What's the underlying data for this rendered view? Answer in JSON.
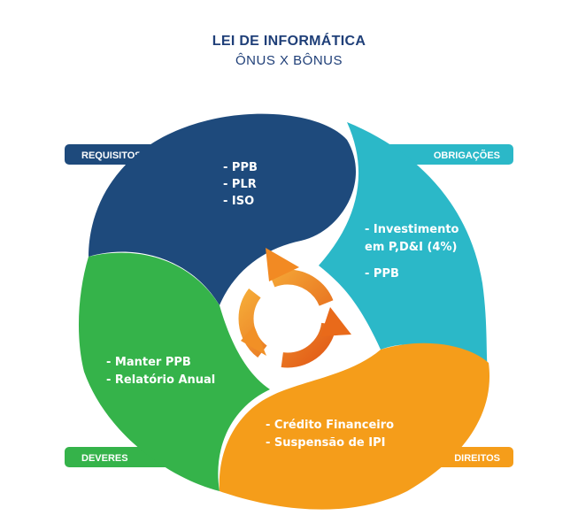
{
  "title": "LEI DE INFORMÁTICA",
  "subtitle": "ÔNUS X BÔNUS",
  "colors": {
    "blue": "#1e4a7c",
    "teal": "#2bb8c8",
    "green": "#35b34a",
    "orange": "#f59d1a",
    "title": "#1f3f78"
  },
  "segments": {
    "requisitos": {
      "label": "REQUISITOS",
      "items": [
        "- PPB",
        "- PLR",
        "- ISO"
      ]
    },
    "obrigacoes": {
      "label": "OBRIGAÇÕES",
      "items": [
        "- Investimento",
        "em P,D&I (4%)",
        "- PPB"
      ]
    },
    "deveres": {
      "label": "DEVERES",
      "items": [
        "- Manter PPB",
        "- Relatório Anual"
      ]
    },
    "direitos": {
      "label": "DIREITOS",
      "items": [
        "- Crédito Financeiro",
        "- Suspensão de IPI"
      ]
    }
  },
  "center_icon": "refresh-cycle-icon"
}
